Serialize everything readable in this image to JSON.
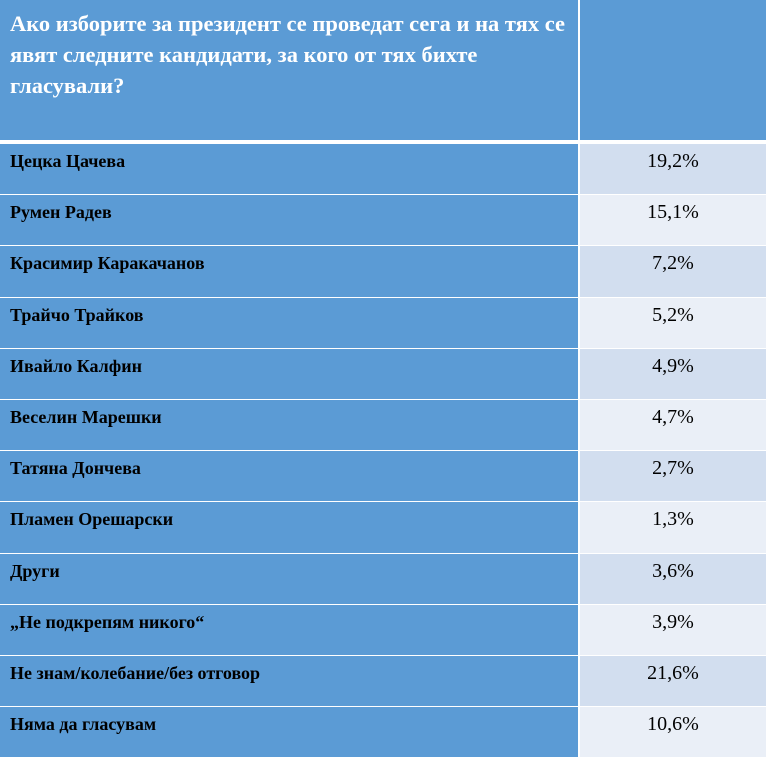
{
  "header": {
    "question": "Ако изборите за президент се проведат сега и на тях се явят следните кандидати, за кого от тях бихте гласували?"
  },
  "chart_data": {
    "type": "table",
    "title": "Ако изборите за президент се проведат сега и на тях се явят следните кандидати, за кого от тях бихте гласували?",
    "rows": [
      {
        "name": "Цецка Цачева",
        "value": "19,2%"
      },
      {
        "name": "Румен Радев",
        "value": "15,1%"
      },
      {
        "name": "Красимир Каракачанов",
        "value": "7,2%"
      },
      {
        "name": "Трайчо Трайков",
        "value": "5,2%"
      },
      {
        "name": "Ивайло Калфин",
        "value": "4,9%"
      },
      {
        "name": "Веселин Марешки",
        "value": "4,7%"
      },
      {
        "name": "Татяна Дончева",
        "value": "2,7%"
      },
      {
        "name": "Пламен Орешарски",
        "value": "1,3%"
      },
      {
        "name": "Други",
        "value": "3,6%"
      },
      {
        "name": "„Не подкрепям никого“",
        "value": "3,9%"
      },
      {
        "name": "Не знам/колебание/без отговор",
        "value": "21,6%"
      },
      {
        "name": "Няма да гласувам",
        "value": "10,6%"
      }
    ]
  },
  "colors": {
    "header_bg": "#5b9bd5",
    "name_bg": "#5b9bd5",
    "value_bg_dark": "#d2deef",
    "value_bg_light": "#eaeff7"
  }
}
